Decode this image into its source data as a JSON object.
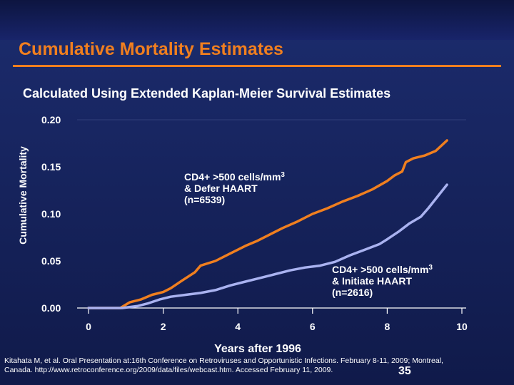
{
  "title": "Cumulative Mortality Estimates",
  "subtitle": "Calculated Using Extended Kaplan-Meier Survival Estimates",
  "citation": "Kitahata M, et al. Oral Presentation at:16th Conference on Retroviruses and Opportunistic Infections. February 8-11, 2009; Montreal, Canada. http://www.retroconference.org/2009/data/files/webcast.htm. Accessed February 11, 2009.",
  "page_number": "35",
  "colors": {
    "accent": "#f07f1f",
    "background": "#1c2c6e",
    "series_defer": "#f07f1f",
    "series_initiate": "#a9b2f0"
  },
  "chart_data": {
    "type": "line",
    "title": "",
    "xlabel": "Years after 1996",
    "ylabel": "Cumulative Mortality",
    "xlim": [
      0,
      10
    ],
    "ylim": [
      0,
      0.2
    ],
    "xticks": [
      0,
      2,
      4,
      6,
      8,
      10
    ],
    "xtick_labels": [
      "0",
      "2",
      "4",
      "6",
      "8",
      "10"
    ],
    "yticks": [
      0,
      0.05,
      0.1,
      0.15,
      0.2
    ],
    "ytick_labels": [
      "0.00",
      "0.05",
      "0.10",
      "0.15",
      "0.20"
    ],
    "grid": false,
    "series": [
      {
        "key": "defer",
        "label_lines": [
          "CD4+ >500 cells/mm",
          "& Defer HAART",
          "(n=6539)"
        ],
        "superscript": "3",
        "color": "#f07f1f",
        "x": [
          0,
          0.6,
          0.85,
          1.1,
          1.4,
          1.7,
          2.0,
          2.2,
          2.5,
          2.85,
          3.0,
          3.4,
          3.8,
          4.2,
          4.5,
          4.8,
          5.2,
          5.6,
          6.0,
          6.4,
          6.8,
          7.2,
          7.6,
          8.0,
          8.2,
          8.4,
          8.5,
          8.7,
          9.0,
          9.3,
          9.6
        ],
        "y": [
          0,
          0,
          0,
          0.006,
          0.009,
          0.014,
          0.017,
          0.021,
          0.029,
          0.038,
          0.045,
          0.05,
          0.058,
          0.066,
          0.071,
          0.077,
          0.085,
          0.092,
          0.1,
          0.106,
          0.113,
          0.119,
          0.126,
          0.135,
          0.141,
          0.145,
          0.155,
          0.159,
          0.162,
          0.167,
          0.178
        ]
      },
      {
        "key": "initiate",
        "label_lines": [
          "CD4+ >500 cells/mm",
          "& Initiate HAART",
          "(n=2616)"
        ],
        "superscript": "3",
        "color": "#a9b2f0",
        "x": [
          0,
          0.9,
          1.3,
          1.6,
          1.9,
          2.2,
          2.6,
          3.0,
          3.4,
          3.8,
          4.2,
          4.6,
          5.0,
          5.4,
          5.8,
          6.2,
          6.6,
          7.0,
          7.4,
          7.8,
          8.0,
          8.3,
          8.6,
          8.9,
          9.1,
          9.3,
          9.6
        ],
        "y": [
          0,
          0,
          0.002,
          0.005,
          0.009,
          0.012,
          0.014,
          0.016,
          0.019,
          0.024,
          0.028,
          0.032,
          0.036,
          0.04,
          0.043,
          0.045,
          0.049,
          0.056,
          0.062,
          0.068,
          0.073,
          0.081,
          0.09,
          0.097,
          0.106,
          0.116,
          0.131
        ]
      }
    ]
  }
}
